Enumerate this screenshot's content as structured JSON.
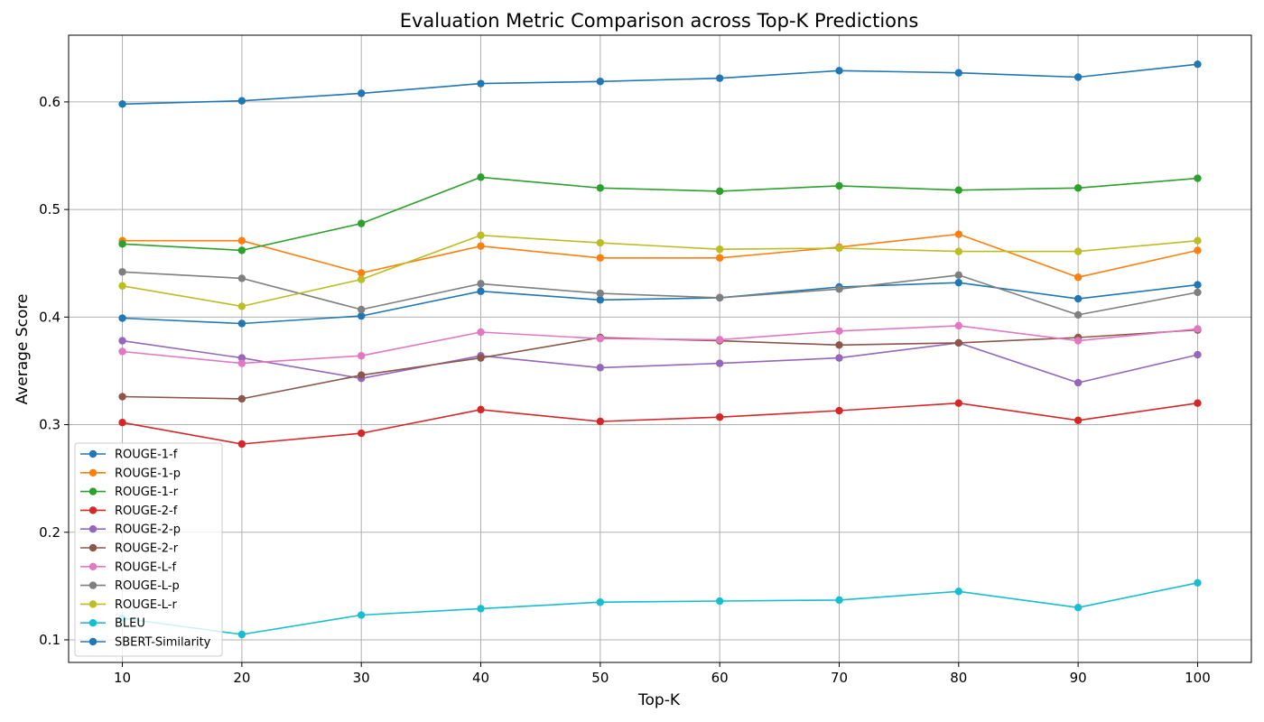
{
  "chart_data": {
    "type": "line",
    "title": "Evaluation Metric Comparison across Top-K Predictions",
    "xlabel": "Top-K",
    "ylabel": "Average Score",
    "x": [
      10,
      20,
      30,
      40,
      50,
      60,
      70,
      80,
      90,
      100
    ],
    "xlim": [
      5.5,
      104.5
    ],
    "ylim": [
      0.079,
      0.662
    ],
    "xticks": [
      "10",
      "20",
      "30",
      "40",
      "50",
      "60",
      "70",
      "80",
      "90",
      "100"
    ],
    "yticks": [
      "0.1",
      "0.2",
      "0.3",
      "0.4",
      "0.5",
      "0.6"
    ],
    "grid": true,
    "legend_position": "lower-left",
    "series": [
      {
        "name": "ROUGE-1-f",
        "color": "#1f77b4",
        "values": [
          0.399,
          0.394,
          0.401,
          0.424,
          0.416,
          0.418,
          0.428,
          0.432,
          0.417,
          0.43
        ]
      },
      {
        "name": "ROUGE-1-p",
        "color": "#ff7f0e",
        "values": [
          0.471,
          0.471,
          0.441,
          0.466,
          0.455,
          0.455,
          0.465,
          0.477,
          0.437,
          0.462
        ]
      },
      {
        "name": "ROUGE-1-r",
        "color": "#2ca02c",
        "values": [
          0.468,
          0.462,
          0.487,
          0.53,
          0.52,
          0.517,
          0.522,
          0.518,
          0.52,
          0.529
        ]
      },
      {
        "name": "ROUGE-2-f",
        "color": "#d62728",
        "values": [
          0.302,
          0.282,
          0.292,
          0.314,
          0.303,
          0.307,
          0.313,
          0.32,
          0.304,
          0.32
        ]
      },
      {
        "name": "ROUGE-2-p",
        "color": "#9467bd",
        "values": [
          0.378,
          0.362,
          0.343,
          0.364,
          0.353,
          0.357,
          0.362,
          0.376,
          0.339,
          0.365
        ]
      },
      {
        "name": "ROUGE-2-r",
        "color": "#8c564b",
        "values": [
          0.326,
          0.324,
          0.346,
          0.362,
          0.381,
          0.378,
          0.374,
          0.376,
          0.381,
          0.388
        ]
      },
      {
        "name": "ROUGE-L-f",
        "color": "#e377c2",
        "values": [
          0.368,
          0.357,
          0.364,
          0.386,
          0.38,
          0.379,
          0.387,
          0.392,
          0.378,
          0.389
        ]
      },
      {
        "name": "ROUGE-L-p",
        "color": "#7f7f7f",
        "values": [
          0.442,
          0.436,
          0.407,
          0.431,
          0.422,
          0.418,
          0.426,
          0.439,
          0.402,
          0.423
        ]
      },
      {
        "name": "ROUGE-L-r",
        "color": "#bcbd22",
        "values": [
          0.429,
          0.41,
          0.435,
          0.476,
          0.469,
          0.463,
          0.464,
          0.461,
          0.461,
          0.471
        ]
      },
      {
        "name": "BLEU",
        "color": "#17becf",
        "values": [
          0.12,
          0.105,
          0.123,
          0.129,
          0.135,
          0.136,
          0.137,
          0.145,
          0.13,
          0.153
        ]
      },
      {
        "name": "SBERT-Similarity",
        "color": "#1f77b4",
        "values": [
          0.598,
          0.601,
          0.608,
          0.617,
          0.619,
          0.622,
          0.629,
          0.627,
          0.623,
          0.635
        ]
      }
    ]
  }
}
